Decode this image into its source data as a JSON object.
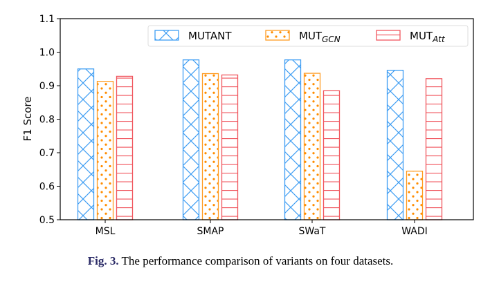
{
  "chart_data": {
    "type": "bar",
    "ylabel": "F1 Score",
    "ylim": [
      0.5,
      1.1
    ],
    "yticks": [
      "0.5",
      "0.6",
      "0.7",
      "0.8",
      "0.9",
      "1.0",
      "1.1"
    ],
    "categories": [
      "MSL",
      "SMAP",
      "SWaT",
      "WADI"
    ],
    "legend_position": "top-right",
    "series": [
      {
        "name": "MUTANT",
        "sub": "",
        "values": [
          0.95,
          0.977,
          0.977,
          0.946
        ],
        "color": "#3d9df3",
        "hatch": "cross"
      },
      {
        "name": "MUT",
        "sub": "GCN",
        "values": [
          0.913,
          0.936,
          0.937,
          0.645
        ],
        "color": "#ff9a1f",
        "hatch": "dots"
      },
      {
        "name": "MUT",
        "sub": "Att",
        "values": [
          0.928,
          0.932,
          0.885,
          0.921
        ],
        "color": "#f0555d",
        "hatch": "horizontal"
      }
    ]
  },
  "caption": {
    "label": "Fig. 3.",
    "text": " The performance comparison of variants on four datasets."
  }
}
